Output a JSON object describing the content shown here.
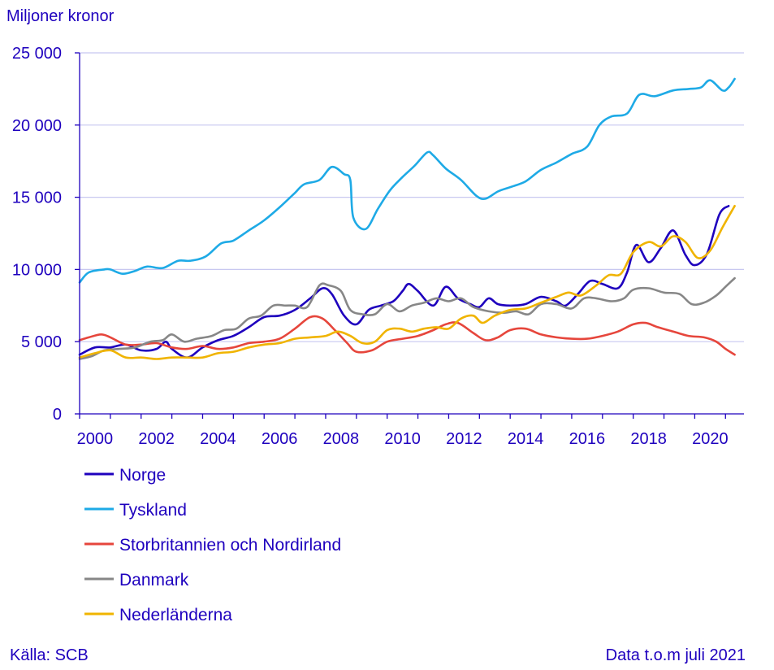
{
  "chart_data": {
    "type": "line",
    "ylabel": "Miljoner kronor",
    "ylim": [
      0,
      25000
    ],
    "xlim": [
      2000,
      2021.6
    ],
    "yticks": [
      0,
      5000,
      10000,
      15000,
      20000,
      25000
    ],
    "ytick_labels": [
      "0",
      "5 000",
      "10 000",
      "15 000",
      "20 000",
      "25 000"
    ],
    "xticks": [
      2000,
      2002,
      2004,
      2006,
      2008,
      2010,
      2012,
      2014,
      2016,
      2018,
      2020
    ],
    "xtick_labels": [
      "2000",
      "2002",
      "2004",
      "2006",
      "2008",
      "2010",
      "2012",
      "2014",
      "2016",
      "2018",
      "2020"
    ],
    "grid": "horizontal",
    "legend_position": "bottom-left",
    "source": "Källa: SCB",
    "note": "Data t.o.m juli 2021",
    "series": [
      {
        "name": "Norge",
        "color": "#1e00be",
        "points": [
          [
            2000.0,
            4100
          ],
          [
            2000.5,
            4600
          ],
          [
            2001.0,
            4600
          ],
          [
            2001.5,
            4800
          ],
          [
            2002.0,
            4400
          ],
          [
            2002.5,
            4500
          ],
          [
            2002.8,
            5000
          ],
          [
            2003.0,
            4500
          ],
          [
            2003.5,
            3900
          ],
          [
            2004.0,
            4600
          ],
          [
            2004.5,
            5100
          ],
          [
            2005.0,
            5400
          ],
          [
            2005.5,
            6000
          ],
          [
            2006.0,
            6700
          ],
          [
            2006.5,
            6800
          ],
          [
            2007.0,
            7200
          ],
          [
            2007.5,
            8000
          ],
          [
            2007.9,
            8700
          ],
          [
            2008.2,
            8300
          ],
          [
            2008.6,
            6800
          ],
          [
            2009.0,
            6200
          ],
          [
            2009.4,
            7200
          ],
          [
            2009.8,
            7500
          ],
          [
            2010.2,
            7800
          ],
          [
            2010.5,
            8500
          ],
          [
            2010.7,
            9000
          ],
          [
            2011.0,
            8500
          ],
          [
            2011.5,
            7500
          ],
          [
            2011.9,
            8800
          ],
          [
            2012.3,
            8000
          ],
          [
            2012.7,
            7600
          ],
          [
            2013.0,
            7400
          ],
          [
            2013.3,
            8000
          ],
          [
            2013.6,
            7600
          ],
          [
            2014.0,
            7500
          ],
          [
            2014.5,
            7600
          ],
          [
            2015.0,
            8100
          ],
          [
            2015.5,
            7800
          ],
          [
            2015.8,
            7500
          ],
          [
            2016.2,
            8300
          ],
          [
            2016.6,
            9200
          ],
          [
            2017.0,
            9000
          ],
          [
            2017.5,
            8700
          ],
          [
            2017.8,
            9800
          ],
          [
            2018.1,
            11700
          ],
          [
            2018.5,
            10500
          ],
          [
            2018.9,
            11500
          ],
          [
            2019.3,
            12700
          ],
          [
            2019.7,
            11000
          ],
          [
            2020.0,
            10300
          ],
          [
            2020.4,
            11100
          ],
          [
            2020.8,
            13800
          ],
          [
            2021.1,
            14400
          ]
        ]
      },
      {
        "name": "Tyskland",
        "color": "#1eaae6",
        "points": [
          [
            2000.0,
            9100
          ],
          [
            2000.3,
            9800
          ],
          [
            2000.8,
            10000
          ],
          [
            2001.0,
            10000
          ],
          [
            2001.4,
            9700
          ],
          [
            2001.8,
            9900
          ],
          [
            2002.2,
            10200
          ],
          [
            2002.7,
            10100
          ],
          [
            2003.2,
            10600
          ],
          [
            2003.6,
            10600
          ],
          [
            2004.1,
            10900
          ],
          [
            2004.6,
            11800
          ],
          [
            2005.0,
            12000
          ],
          [
            2005.5,
            12700
          ],
          [
            2006.0,
            13400
          ],
          [
            2006.5,
            14300
          ],
          [
            2007.0,
            15300
          ],
          [
            2007.3,
            15900
          ],
          [
            2007.8,
            16200
          ],
          [
            2008.2,
            17100
          ],
          [
            2008.6,
            16600
          ],
          [
            2008.8,
            16200
          ],
          [
            2008.9,
            13600
          ],
          [
            2009.3,
            12800
          ],
          [
            2009.7,
            14200
          ],
          [
            2010.1,
            15500
          ],
          [
            2010.5,
            16400
          ],
          [
            2010.9,
            17200
          ],
          [
            2011.3,
            18100
          ],
          [
            2011.5,
            17900
          ],
          [
            2011.9,
            17000
          ],
          [
            2012.4,
            16200
          ],
          [
            2012.9,
            15100
          ],
          [
            2013.2,
            14900
          ],
          [
            2013.6,
            15400
          ],
          [
            2014.0,
            15700
          ],
          [
            2014.5,
            16100
          ],
          [
            2015.0,
            16900
          ],
          [
            2015.5,
            17400
          ],
          [
            2016.0,
            18000
          ],
          [
            2016.5,
            18500
          ],
          [
            2016.9,
            20000
          ],
          [
            2017.3,
            20600
          ],
          [
            2017.8,
            20800
          ],
          [
            2018.2,
            22100
          ],
          [
            2018.7,
            22000
          ],
          [
            2019.3,
            22400
          ],
          [
            2019.8,
            22500
          ],
          [
            2020.2,
            22600
          ],
          [
            2020.5,
            23100
          ],
          [
            2020.9,
            22400
          ],
          [
            2021.1,
            22600
          ],
          [
            2021.3,
            23200
          ]
        ]
      },
      {
        "name": "Storbritannien och Nordirland",
        "color": "#e6463c",
        "points": [
          [
            2000.0,
            5100
          ],
          [
            2000.3,
            5300
          ],
          [
            2000.7,
            5500
          ],
          [
            2001.0,
            5300
          ],
          [
            2001.5,
            4800
          ],
          [
            2002.0,
            4800
          ],
          [
            2002.5,
            4900
          ],
          [
            2003.0,
            4600
          ],
          [
            2003.5,
            4500
          ],
          [
            2004.0,
            4700
          ],
          [
            2004.5,
            4500
          ],
          [
            2005.0,
            4600
          ],
          [
            2005.5,
            4900
          ],
          [
            2006.0,
            5000
          ],
          [
            2006.5,
            5200
          ],
          [
            2007.0,
            5900
          ],
          [
            2007.5,
            6700
          ],
          [
            2007.9,
            6600
          ],
          [
            2008.3,
            5800
          ],
          [
            2008.7,
            4900
          ],
          [
            2009.0,
            4300
          ],
          [
            2009.5,
            4400
          ],
          [
            2010.0,
            5000
          ],
          [
            2010.5,
            5200
          ],
          [
            2011.0,
            5400
          ],
          [
            2011.5,
            5800
          ],
          [
            2011.9,
            6200
          ],
          [
            2012.3,
            6300
          ],
          [
            2012.8,
            5600
          ],
          [
            2013.2,
            5100
          ],
          [
            2013.6,
            5300
          ],
          [
            2014.0,
            5800
          ],
          [
            2014.5,
            5900
          ],
          [
            2015.0,
            5500
          ],
          [
            2015.5,
            5300
          ],
          [
            2016.0,
            5200
          ],
          [
            2016.5,
            5200
          ],
          [
            2017.0,
            5400
          ],
          [
            2017.5,
            5700
          ],
          [
            2018.0,
            6200
          ],
          [
            2018.4,
            6300
          ],
          [
            2018.8,
            6000
          ],
          [
            2019.3,
            5700
          ],
          [
            2019.8,
            5400
          ],
          [
            2020.3,
            5300
          ],
          [
            2020.7,
            5000
          ],
          [
            2021.0,
            4500
          ],
          [
            2021.3,
            4100
          ]
        ]
      },
      {
        "name": "Danmark",
        "color": "#878787",
        "points": [
          [
            2000.0,
            3800
          ],
          [
            2000.4,
            4000
          ],
          [
            2000.8,
            4400
          ],
          [
            2001.3,
            4500
          ],
          [
            2001.8,
            4600
          ],
          [
            2002.3,
            5000
          ],
          [
            2002.7,
            5100
          ],
          [
            2003.0,
            5500
          ],
          [
            2003.4,
            5000
          ],
          [
            2003.8,
            5200
          ],
          [
            2004.3,
            5400
          ],
          [
            2004.7,
            5800
          ],
          [
            2005.1,
            5900
          ],
          [
            2005.5,
            6600
          ],
          [
            2005.9,
            6800
          ],
          [
            2006.3,
            7500
          ],
          [
            2006.7,
            7500
          ],
          [
            2007.0,
            7500
          ],
          [
            2007.4,
            7400
          ],
          [
            2007.8,
            8900
          ],
          [
            2008.1,
            8900
          ],
          [
            2008.5,
            8500
          ],
          [
            2008.8,
            7200
          ],
          [
            2009.2,
            6900
          ],
          [
            2009.6,
            6900
          ],
          [
            2010.0,
            7600
          ],
          [
            2010.4,
            7100
          ],
          [
            2010.8,
            7500
          ],
          [
            2011.2,
            7700
          ],
          [
            2011.6,
            8000
          ],
          [
            2012.0,
            7800
          ],
          [
            2012.4,
            8000
          ],
          [
            2012.8,
            7400
          ],
          [
            2013.3,
            7100
          ],
          [
            2013.8,
            7000
          ],
          [
            2014.2,
            7100
          ],
          [
            2014.6,
            6900
          ],
          [
            2015.0,
            7600
          ],
          [
            2015.5,
            7600
          ],
          [
            2016.0,
            7300
          ],
          [
            2016.4,
            8000
          ],
          [
            2016.8,
            8000
          ],
          [
            2017.3,
            7800
          ],
          [
            2017.7,
            8000
          ],
          [
            2018.0,
            8600
          ],
          [
            2018.5,
            8700
          ],
          [
            2019.0,
            8400
          ],
          [
            2019.5,
            8300
          ],
          [
            2019.9,
            7600
          ],
          [
            2020.3,
            7700
          ],
          [
            2020.7,
            8200
          ],
          [
            2021.0,
            8800
          ],
          [
            2021.3,
            9400
          ]
        ]
      },
      {
        "name": "Nederländerna",
        "color": "#f0b400",
        "points": [
          [
            2000.0,
            3900
          ],
          [
            2000.5,
            4200
          ],
          [
            2001.0,
            4400
          ],
          [
            2001.5,
            3900
          ],
          [
            2002.0,
            3900
          ],
          [
            2002.5,
            3800
          ],
          [
            2003.0,
            3900
          ],
          [
            2003.5,
            3900
          ],
          [
            2004.0,
            3900
          ],
          [
            2004.5,
            4200
          ],
          [
            2005.0,
            4300
          ],
          [
            2005.5,
            4600
          ],
          [
            2006.0,
            4800
          ],
          [
            2006.5,
            4900
          ],
          [
            2007.0,
            5200
          ],
          [
            2007.5,
            5300
          ],
          [
            2008.0,
            5400
          ],
          [
            2008.4,
            5700
          ],
          [
            2008.8,
            5400
          ],
          [
            2009.2,
            4900
          ],
          [
            2009.6,
            5000
          ],
          [
            2010.0,
            5800
          ],
          [
            2010.4,
            5900
          ],
          [
            2010.8,
            5700
          ],
          [
            2011.2,
            5900
          ],
          [
            2011.6,
            6000
          ],
          [
            2012.0,
            5900
          ],
          [
            2012.4,
            6600
          ],
          [
            2012.8,
            6800
          ],
          [
            2013.1,
            6300
          ],
          [
            2013.5,
            6800
          ],
          [
            2014.0,
            7200
          ],
          [
            2014.5,
            7300
          ],
          [
            2015.0,
            7700
          ],
          [
            2015.5,
            8100
          ],
          [
            2015.9,
            8400
          ],
          [
            2016.3,
            8200
          ],
          [
            2016.8,
            8900
          ],
          [
            2017.2,
            9600
          ],
          [
            2017.6,
            9700
          ],
          [
            2018.0,
            11200
          ],
          [
            2018.5,
            11900
          ],
          [
            2018.9,
            11600
          ],
          [
            2019.3,
            12300
          ],
          [
            2019.7,
            11900
          ],
          [
            2020.1,
            10800
          ],
          [
            2020.5,
            11300
          ],
          [
            2020.9,
            12900
          ],
          [
            2021.3,
            14400
          ]
        ]
      }
    ]
  }
}
